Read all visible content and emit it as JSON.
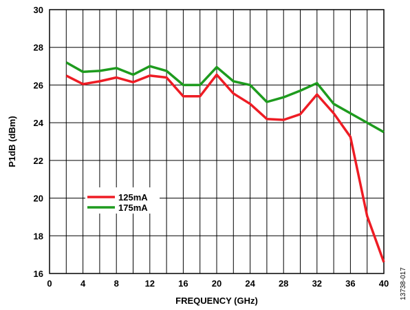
{
  "chart_data": {
    "type": "line",
    "title": "",
    "xlabel": "FREQUENCY (GHz)",
    "ylabel": "P1dB (dBm)",
    "xlim": [
      0,
      40
    ],
    "ylim": [
      16,
      30
    ],
    "x_ticks": [
      0,
      4,
      8,
      12,
      16,
      20,
      24,
      28,
      32,
      36,
      40
    ],
    "y_ticks": [
      16,
      18,
      20,
      22,
      24,
      26,
      28,
      30
    ],
    "x_tick_labels": [
      "0",
      "4",
      "8",
      "12",
      "16",
      "20",
      "24",
      "28",
      "32",
      "36",
      "40"
    ],
    "y_tick_labels": [
      "16",
      "18",
      "20",
      "22",
      "24",
      "26",
      "28",
      "30"
    ],
    "x_grid_step": 2,
    "y_grid_step": 2,
    "grid": true,
    "legend_position": "lower-left",
    "figure_id": "13738-017",
    "series": [
      {
        "name": "125mA",
        "color": "#ee1c24",
        "x": [
          2,
          4,
          6,
          8,
          10,
          12,
          14,
          16,
          18,
          20,
          22,
          24,
          26,
          28,
          30,
          32,
          34,
          36,
          38,
          40
        ],
        "y": [
          26.5,
          26.05,
          26.2,
          26.4,
          26.15,
          26.5,
          26.4,
          25.4,
          25.4,
          26.55,
          25.55,
          25.0,
          24.2,
          24.15,
          24.45,
          25.5,
          24.5,
          23.25,
          19.05,
          16.6
        ]
      },
      {
        "name": "175mA",
        "color": "#1e9b1e",
        "x": [
          2,
          4,
          6,
          8,
          10,
          12,
          14,
          16,
          18,
          20,
          22,
          24,
          26,
          28,
          30,
          32,
          34,
          36,
          38,
          40
        ],
        "y": [
          27.2,
          26.7,
          26.75,
          26.9,
          26.55,
          27.0,
          26.75,
          26.0,
          26.0,
          26.95,
          26.2,
          26.0,
          25.1,
          25.35,
          25.7,
          26.1,
          25.0,
          24.5,
          24.0,
          23.5
        ]
      }
    ]
  }
}
